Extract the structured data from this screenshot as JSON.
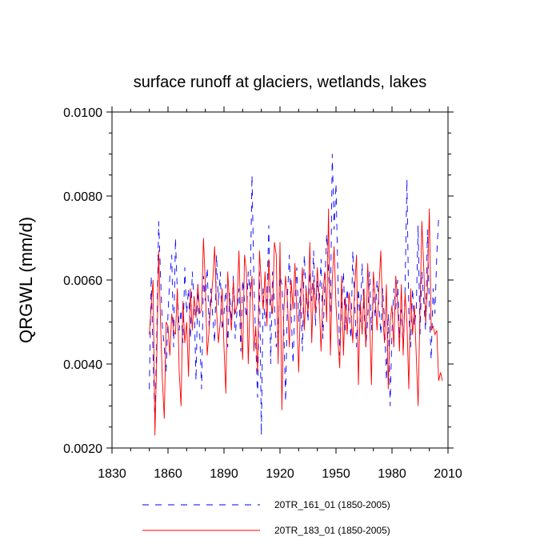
{
  "chart_data": {
    "type": "line",
    "title": "surface runoff at glaciers, wetlands, lakes",
    "xlabel": "",
    "ylabel": "QRGWL  (mm/d)",
    "xlim": [
      1830,
      2010
    ],
    "ylim": [
      0.002,
      0.01
    ],
    "x_ticks": [
      "1830",
      "1860",
      "1890",
      "1920",
      "1950",
      "1980",
      "2010"
    ],
    "y_ticks": [
      "0.0020",
      "0.0040",
      "0.0060",
      "0.0080",
      "0.0100"
    ],
    "grid": false,
    "legend_position": "bottom",
    "x_start": 1850,
    "series": [
      {
        "name": "20TR_161_01 (1850-2005)",
        "color": "#0000ff",
        "style": "dashed",
        "values": [
          0.0034,
          0.0061,
          0.0042,
          0.0026,
          0.0047,
          0.0074,
          0.0061,
          0.0049,
          0.0044,
          0.0038,
          0.0052,
          0.0061,
          0.0066,
          0.0044,
          0.007,
          0.0057,
          0.0048,
          0.0053,
          0.0045,
          0.0063,
          0.0052,
          0.0058,
          0.0046,
          0.0062,
          0.0055,
          0.0036,
          0.0059,
          0.0047,
          0.0034,
          0.0061,
          0.0055,
          0.0063,
          0.0049,
          0.0058,
          0.0051,
          0.0045,
          0.0066,
          0.0054,
          0.0062,
          0.0048,
          0.0052,
          0.0059,
          0.0044,
          0.0057,
          0.005,
          0.0061,
          0.0046,
          0.0053,
          0.0058,
          0.0043,
          0.006,
          0.0055,
          0.0051,
          0.0062,
          0.0056,
          0.0085,
          0.006,
          0.0045,
          0.0032,
          0.0062,
          0.0023,
          0.0058,
          0.0049,
          0.0056,
          0.0073,
          0.004,
          0.0062,
          0.0054,
          0.0044,
          0.0048,
          0.0061,
          0.0059,
          0.0049,
          0.0031,
          0.0056,
          0.0066,
          0.0052,
          0.004,
          0.0055,
          0.0063,
          0.005,
          0.0058,
          0.0043,
          0.0066,
          0.0057,
          0.005,
          0.0062,
          0.0055,
          0.0067,
          0.0049,
          0.006,
          0.0054,
          0.0065,
          0.0046,
          0.0058,
          0.0071,
          0.0062,
          0.0052,
          0.009,
          0.0072,
          0.0083,
          0.0061,
          0.0042,
          0.0054,
          0.0062,
          0.0048,
          0.0058,
          0.0052,
          0.0046,
          0.0067,
          0.0055,
          0.0044,
          0.0058,
          0.005,
          0.0064,
          0.0053,
          0.0044,
          0.0051,
          0.0062,
          0.0048,
          0.0058,
          0.0051,
          0.006,
          0.0054,
          0.0047,
          0.0058,
          0.005,
          0.0036,
          0.0052,
          0.003,
          0.0048,
          0.0058,
          0.0053,
          0.006,
          0.0046,
          0.0053,
          0.0043,
          0.0058,
          0.0084,
          0.0052,
          0.0044,
          0.0058,
          0.0049,
          0.0053,
          0.0073,
          0.0047,
          0.0062,
          0.0055,
          0.0048,
          0.0072,
          0.0053,
          0.0041,
          0.0058,
          0.0052,
          0.0066,
          0.0075
        ]
      },
      {
        "name": "20TR_183_01 (1850-2005)",
        "color": "#ff0000",
        "style": "solid",
        "values": [
          0.0047,
          0.0054,
          0.006,
          0.0023,
          0.0042,
          0.0067,
          0.005,
          0.0036,
          0.0027,
          0.005,
          0.0049,
          0.0042,
          0.0052,
          0.0048,
          0.0047,
          0.0058,
          0.0038,
          0.003,
          0.0055,
          0.0045,
          0.005,
          0.0037,
          0.0058,
          0.0048,
          0.0056,
          0.0051,
          0.0059,
          0.0052,
          0.0053,
          0.007,
          0.0059,
          0.0042,
          0.0048,
          0.0055,
          0.006,
          0.0068,
          0.0053,
          0.0045,
          0.005,
          0.0058,
          0.0044,
          0.0033,
          0.0062,
          0.0054,
          0.0048,
          0.006,
          0.0052,
          0.0054,
          0.0067,
          0.005,
          0.0041,
          0.0066,
          0.0062,
          0.004,
          0.0055,
          0.0061,
          0.0043,
          0.0049,
          0.0038,
          0.0067,
          0.0059,
          0.0053,
          0.0062,
          0.0049,
          0.0065,
          0.0055,
          0.0052,
          0.0069,
          0.0066,
          0.004,
          0.0069,
          0.0029,
          0.0052,
          0.0061,
          0.0055,
          0.0044,
          0.006,
          0.0053,
          0.0064,
          0.0052,
          0.0038,
          0.0055,
          0.0063,
          0.0048,
          0.0058,
          0.0052,
          0.0069,
          0.0045,
          0.006,
          0.0052,
          0.0063,
          0.0055,
          0.0043,
          0.0057,
          0.0062,
          0.005,
          0.0077,
          0.0042,
          0.006,
          0.0068,
          0.0054,
          0.0046,
          0.0039,
          0.0061,
          0.0042,
          0.0056,
          0.0047,
          0.0057,
          0.0052,
          0.0045,
          0.0058,
          0.0066,
          0.0035,
          0.0055,
          0.0047,
          0.0058,
          0.0044,
          0.0064,
          0.0051,
          0.0035,
          0.0062,
          0.0056,
          0.0048,
          0.0058,
          0.0067,
          0.0052,
          0.0045,
          0.0059,
          0.0034,
          0.005,
          0.0054,
          0.0044,
          0.0061,
          0.0055,
          0.0043,
          0.0059,
          0.0042,
          0.0057,
          0.005,
          0.0034,
          0.0058,
          0.0047,
          0.0054,
          0.0042,
          0.003,
          0.0053,
          0.0074,
          0.0063,
          0.005,
          0.0058,
          0.0077,
          0.0048,
          0.0049,
          0.0047,
          0.0048,
          0.0036,
          0.0038,
          0.0036
        ]
      }
    ]
  }
}
